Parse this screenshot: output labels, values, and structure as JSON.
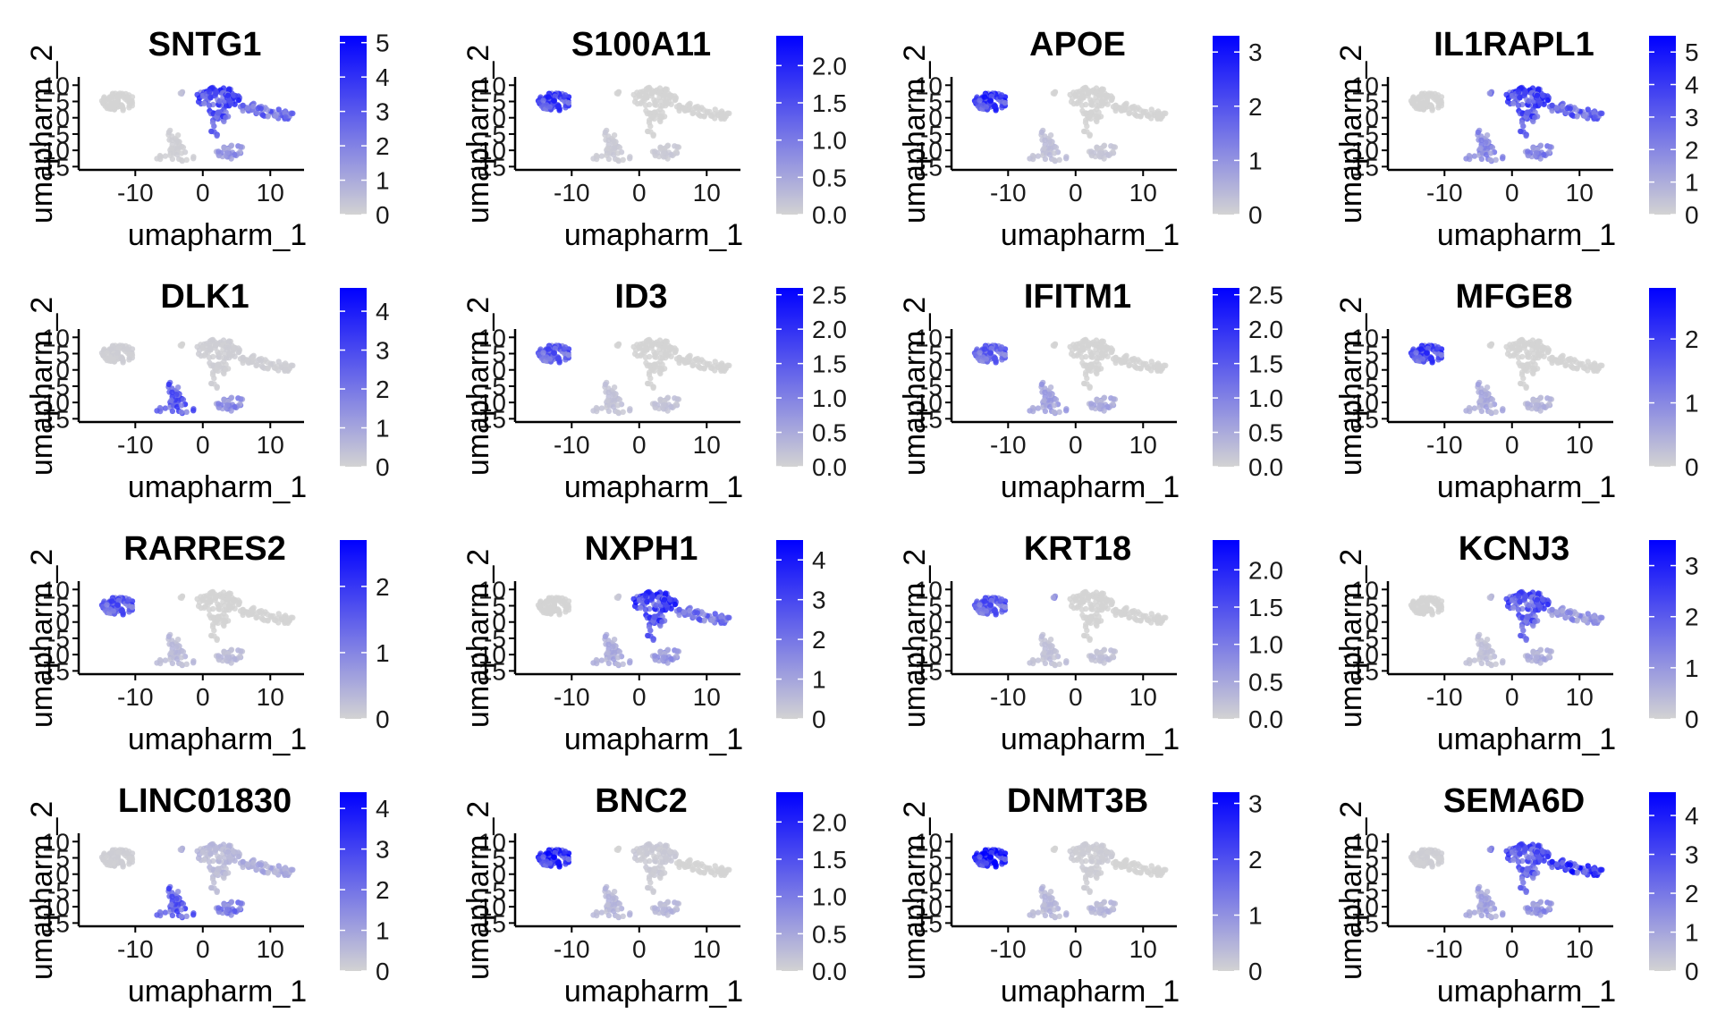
{
  "figure": {
    "xlabel": "umapharm_1",
    "ylabel": "umapharm_2",
    "x_ticks": [
      -10,
      0,
      10
    ],
    "y_ticks": [
      10,
      5,
      0,
      -5,
      -10,
      -15
    ],
    "colors": {
      "low": "#d3d3d3",
      "high": "#0000ff",
      "axis": "#000000",
      "text": "#1a1a1a"
    }
  },
  "chart_data": [
    {
      "type": "scatter",
      "title": "SNTG1",
      "xlabel": "umapharm_1",
      "ylabel": "umapharm_2",
      "xlim": [
        -16,
        15
      ],
      "ylim": [
        -16,
        12
      ],
      "grid": false,
      "legend": "colorbar-right",
      "color_max": 5.2,
      "colorbar_ticks": [
        "0",
        "1",
        "2",
        "3",
        "4",
        "5"
      ],
      "region_levels": {
        "left_blob": 0.0,
        "top_arm": 3.2,
        "upper_small": 0.6,
        "right_arm": 2.4,
        "bottom_left": 0.1,
        "bottom_right": 1.5
      }
    },
    {
      "type": "scatter",
      "title": "S100A11",
      "xlabel": "umapharm_1",
      "ylabel": "umapharm_2",
      "xlim": [
        -16,
        15
      ],
      "ylim": [
        -16,
        12
      ],
      "grid": false,
      "legend": "colorbar-right",
      "color_max": 2.4,
      "colorbar_ticks": [
        "0.0",
        "0.5",
        "1.0",
        "1.5",
        "2.0"
      ],
      "region_levels": {
        "left_blob": 1.6,
        "top_arm": 0.0,
        "upper_small": 0.0,
        "right_arm": 0.0,
        "bottom_left": 0.1,
        "bottom_right": 0.1
      }
    },
    {
      "type": "scatter",
      "title": "APOE",
      "xlabel": "umapharm_1",
      "ylabel": "umapharm_2",
      "xlim": [
        -16,
        15
      ],
      "ylim": [
        -16,
        12
      ],
      "grid": false,
      "legend": "colorbar-right",
      "color_max": 3.3,
      "colorbar_ticks": [
        "0",
        "1",
        "2",
        "3"
      ],
      "region_levels": {
        "left_blob": 2.3,
        "top_arm": 0.0,
        "upper_small": 0.0,
        "right_arm": 0.0,
        "bottom_left": 0.3,
        "bottom_right": 0.2
      }
    },
    {
      "type": "scatter",
      "title": "IL1RAPL1",
      "xlabel": "umapharm_1",
      "ylabel": "umapharm_2",
      "xlim": [
        -16,
        15
      ],
      "ylim": [
        -16,
        12
      ],
      "grid": false,
      "legend": "colorbar-right",
      "color_max": 5.5,
      "colorbar_ticks": [
        "0",
        "1",
        "2",
        "3",
        "4",
        "5"
      ],
      "region_levels": {
        "left_blob": 0.0,
        "top_arm": 3.5,
        "upper_small": 2.5,
        "right_arm": 2.8,
        "bottom_left": 1.8,
        "bottom_right": 2.0
      }
    },
    {
      "type": "scatter",
      "title": "DLK1",
      "xlabel": "umapharm_1",
      "ylabel": "umapharm_2",
      "xlim": [
        -16,
        15
      ],
      "ylim": [
        -16,
        12
      ],
      "grid": false,
      "legend": "colorbar-right",
      "color_max": 4.6,
      "colorbar_ticks": [
        "0",
        "1",
        "2",
        "3",
        "4"
      ],
      "region_levels": {
        "left_blob": 0.1,
        "top_arm": 0.1,
        "upper_small": 0.0,
        "right_arm": 0.1,
        "bottom_left": 2.6,
        "bottom_right": 1.5
      }
    },
    {
      "type": "scatter",
      "title": "ID3",
      "xlabel": "umapharm_1",
      "ylabel": "umapharm_2",
      "xlim": [
        -16,
        15
      ],
      "ylim": [
        -16,
        12
      ],
      "grid": false,
      "legend": "colorbar-right",
      "color_max": 2.6,
      "colorbar_ticks": [
        "0.0",
        "0.5",
        "1.0",
        "1.5",
        "2.0",
        "2.5"
      ],
      "region_levels": {
        "left_blob": 1.4,
        "top_arm": 0.0,
        "upper_small": 0.0,
        "right_arm": 0.0,
        "bottom_left": 0.2,
        "bottom_right": 0.2
      }
    },
    {
      "type": "scatter",
      "title": "IFITM1",
      "xlabel": "umapharm_1",
      "ylabel": "umapharm_2",
      "xlim": [
        -16,
        15
      ],
      "ylim": [
        -16,
        12
      ],
      "grid": false,
      "legend": "colorbar-right",
      "color_max": 2.6,
      "colorbar_ticks": [
        "0.0",
        "0.5",
        "1.0",
        "1.5",
        "2.0",
        "2.5"
      ],
      "region_levels": {
        "left_blob": 1.3,
        "top_arm": 0.0,
        "upper_small": 0.0,
        "right_arm": 0.0,
        "bottom_left": 0.6,
        "bottom_right": 0.5
      }
    },
    {
      "type": "scatter",
      "title": "MFGE8",
      "xlabel": "umapharm_1",
      "ylabel": "umapharm_2",
      "xlim": [
        -16,
        15
      ],
      "ylim": [
        -16,
        12
      ],
      "grid": false,
      "legend": "colorbar-right",
      "color_max": 2.8,
      "colorbar_ticks": [
        "0",
        "1",
        "2"
      ],
      "region_levels": {
        "left_blob": 1.8,
        "top_arm": 0.0,
        "upper_small": 0.0,
        "right_arm": 0.0,
        "bottom_left": 0.5,
        "bottom_right": 0.4
      }
    },
    {
      "type": "scatter",
      "title": "RARRES2",
      "xlabel": "umapharm_1",
      "ylabel": "umapharm_2",
      "xlim": [
        -16,
        15
      ],
      "ylim": [
        -16,
        12
      ],
      "grid": false,
      "legend": "colorbar-right",
      "color_max": 2.7,
      "colorbar_ticks": [
        "0",
        "1",
        "2"
      ],
      "region_levels": {
        "left_blob": 1.5,
        "top_arm": 0.0,
        "upper_small": 0.0,
        "right_arm": 0.0,
        "bottom_left": 0.3,
        "bottom_right": 0.3
      }
    },
    {
      "type": "scatter",
      "title": "NXPH1",
      "xlabel": "umapharm_1",
      "ylabel": "umapharm_2",
      "xlim": [
        -16,
        15
      ],
      "ylim": [
        -16,
        12
      ],
      "grid": false,
      "legend": "colorbar-right",
      "color_max": 4.5,
      "colorbar_ticks": [
        "0",
        "1",
        "2",
        "3",
        "4"
      ],
      "region_levels": {
        "left_blob": 0.0,
        "top_arm": 3.0,
        "upper_small": 0.3,
        "right_arm": 2.0,
        "bottom_left": 0.8,
        "bottom_right": 1.2
      }
    },
    {
      "type": "scatter",
      "title": "KRT18",
      "xlabel": "umapharm_1",
      "ylabel": "umapharm_2",
      "xlim": [
        -16,
        15
      ],
      "ylim": [
        -16,
        12
      ],
      "grid": false,
      "legend": "colorbar-right",
      "color_max": 2.4,
      "colorbar_ticks": [
        "0.0",
        "0.5",
        "1.0",
        "1.5",
        "2.0"
      ],
      "region_levels": {
        "left_blob": 1.3,
        "top_arm": 0.0,
        "upper_small": 0.8,
        "right_arm": 0.0,
        "bottom_left": 0.2,
        "bottom_right": 0.2
      }
    },
    {
      "type": "scatter",
      "title": "KCNJ3",
      "xlabel": "umapharm_1",
      "ylabel": "umapharm_2",
      "xlim": [
        -16,
        15
      ],
      "ylim": [
        -16,
        12
      ],
      "grid": false,
      "legend": "colorbar-right",
      "color_max": 3.5,
      "colorbar_ticks": [
        "0",
        "1",
        "2",
        "3"
      ],
      "region_levels": {
        "left_blob": 0.0,
        "top_arm": 2.0,
        "upper_small": 0.5,
        "right_arm": 1.0,
        "bottom_left": 0.3,
        "bottom_right": 0.6
      }
    },
    {
      "type": "scatter",
      "title": "LINC01830",
      "xlabel": "umapharm_1",
      "ylabel": "umapharm_2",
      "xlim": [
        -16,
        15
      ],
      "ylim": [
        -16,
        12
      ],
      "grid": false,
      "legend": "colorbar-right",
      "color_max": 4.4,
      "colorbar_ticks": [
        "0",
        "1",
        "2",
        "3",
        "4"
      ],
      "region_levels": {
        "left_blob": 0.1,
        "top_arm": 0.5,
        "upper_small": 0.8,
        "right_arm": 0.8,
        "bottom_left": 2.4,
        "bottom_right": 1.8
      }
    },
    {
      "type": "scatter",
      "title": "BNC2",
      "xlabel": "umapharm_1",
      "ylabel": "umapharm_2",
      "xlim": [
        -16,
        15
      ],
      "ylim": [
        -16,
        12
      ],
      "grid": false,
      "legend": "colorbar-right",
      "color_max": 2.4,
      "colorbar_ticks": [
        "0.0",
        "0.5",
        "1.0",
        "1.5",
        "2.0"
      ],
      "region_levels": {
        "left_blob": 1.8,
        "top_arm": 0.1,
        "upper_small": 0.0,
        "right_arm": 0.0,
        "bottom_left": 0.3,
        "bottom_right": 0.3
      }
    },
    {
      "type": "scatter",
      "title": "DNMT3B",
      "xlabel": "umapharm_1",
      "ylabel": "umapharm_2",
      "xlim": [
        -16,
        15
      ],
      "ylim": [
        -16,
        12
      ],
      "grid": false,
      "legend": "colorbar-right",
      "color_max": 3.2,
      "colorbar_ticks": [
        "0",
        "1",
        "2",
        "3"
      ],
      "region_levels": {
        "left_blob": 2.7,
        "top_arm": 0.1,
        "upper_small": 0.0,
        "right_arm": 0.0,
        "bottom_left": 0.4,
        "bottom_right": 0.4
      }
    },
    {
      "type": "scatter",
      "title": "SEMA6D",
      "xlabel": "umapharm_1",
      "ylabel": "umapharm_2",
      "xlim": [
        -16,
        15
      ],
      "ylim": [
        -16,
        12
      ],
      "grid": false,
      "legend": "colorbar-right",
      "color_max": 4.6,
      "colorbar_ticks": [
        "0",
        "1",
        "2",
        "3",
        "4"
      ],
      "region_levels": {
        "left_blob": 0.1,
        "top_arm": 2.6,
        "upper_small": 2.0,
        "right_arm": 3.2,
        "bottom_left": 1.0,
        "bottom_right": 1.4
      }
    }
  ]
}
